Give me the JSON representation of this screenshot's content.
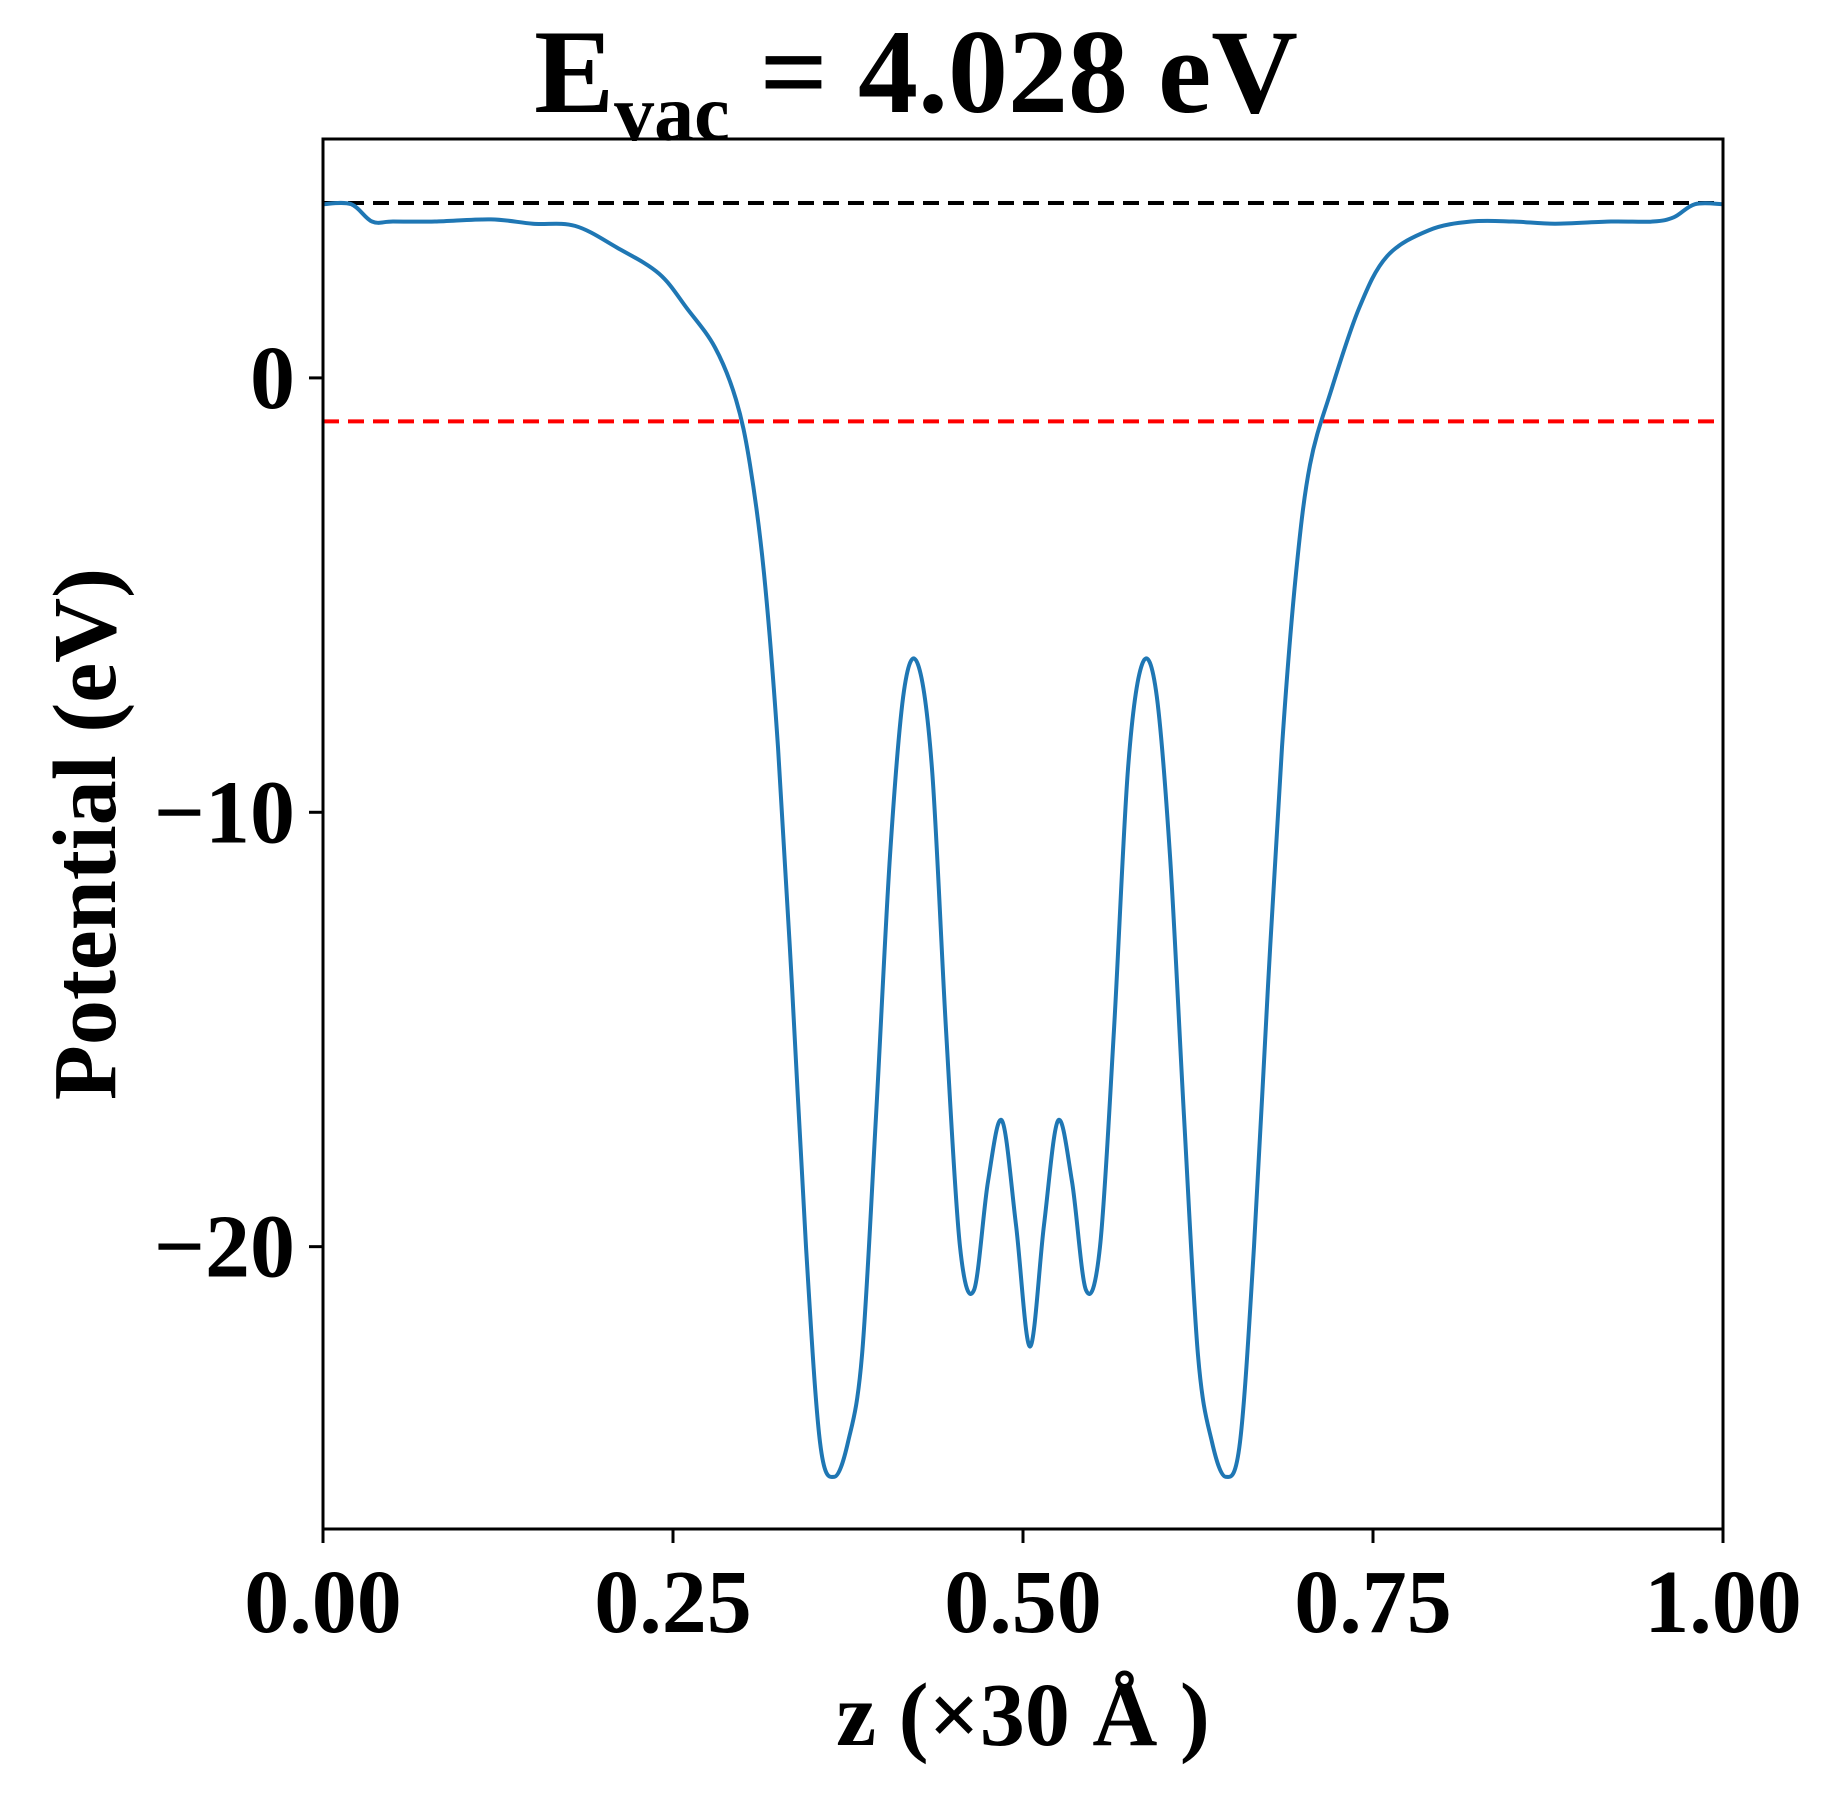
{
  "chart_data": {
    "type": "line",
    "title": {
      "main": "E",
      "subscript": "vac",
      "rest": " = 4.028 eV"
    },
    "xlabel": "z (×30 Å )",
    "ylabel": "Potential (eV)",
    "xlim": [
      0.0,
      1.0
    ],
    "ylim": [
      -26.5,
      5.5
    ],
    "xticks": [
      0.0,
      0.25,
      0.5,
      0.75,
      1.0
    ],
    "xtick_labels": [
      "0.00",
      "0.25",
      "0.50",
      "0.75",
      "1.00"
    ],
    "yticks": [
      0,
      -10,
      -20
    ],
    "ytick_labels": [
      "0",
      "−10",
      "−20"
    ],
    "grid": false,
    "series": [
      {
        "color": "#1f77b4",
        "x": [
          0.0,
          0.02,
          0.035,
          0.05,
          0.08,
          0.12,
          0.15,
          0.18,
          0.21,
          0.24,
          0.26,
          0.28,
          0.295,
          0.305,
          0.315,
          0.325,
          0.335,
          0.345,
          0.355,
          0.365,
          0.375,
          0.385,
          0.395,
          0.405,
          0.415,
          0.425,
          0.435,
          0.445,
          0.455,
          0.465,
          0.475,
          0.485,
          0.495,
          0.505,
          0.515,
          0.525,
          0.535,
          0.545,
          0.555,
          0.565,
          0.575,
          0.585,
          0.595,
          0.605,
          0.615,
          0.625,
          0.635,
          0.645,
          0.655,
          0.665,
          0.675,
          0.685,
          0.695,
          0.705,
          0.72,
          0.74,
          0.76,
          0.79,
          0.82,
          0.85,
          0.88,
          0.92,
          0.95,
          0.965,
          0.98,
          1.0
        ],
        "y": [
          4.0,
          4.0,
          3.6,
          3.6,
          3.6,
          3.65,
          3.55,
          3.5,
          3.0,
          2.4,
          1.6,
          0.7,
          -0.5,
          -2.0,
          -4.5,
          -8.5,
          -14.0,
          -20.0,
          -24.5,
          -25.3,
          -24.5,
          -22.5,
          -17.0,
          -11.0,
          -7.2,
          -6.6,
          -9.0,
          -15.0,
          -20.0,
          -21.0,
          -18.5,
          -17.1,
          -19.5,
          -22.3,
          -19.5,
          -17.1,
          -18.5,
          -21.0,
          -20.0,
          -15.0,
          -9.0,
          -6.6,
          -7.2,
          -11.0,
          -17.0,
          -22.5,
          -24.5,
          -25.3,
          -24.5,
          -20.0,
          -14.0,
          -8.5,
          -4.5,
          -2.0,
          -0.3,
          1.6,
          2.8,
          3.4,
          3.6,
          3.6,
          3.55,
          3.6,
          3.6,
          3.7,
          4.0,
          4.0
        ]
      }
    ],
    "reference_lines": [
      {
        "y": 4.028,
        "color": "#000000",
        "style": "dashed"
      },
      {
        "y": -1.0,
        "color": "#ff0000",
        "style": "dashed"
      }
    ]
  }
}
